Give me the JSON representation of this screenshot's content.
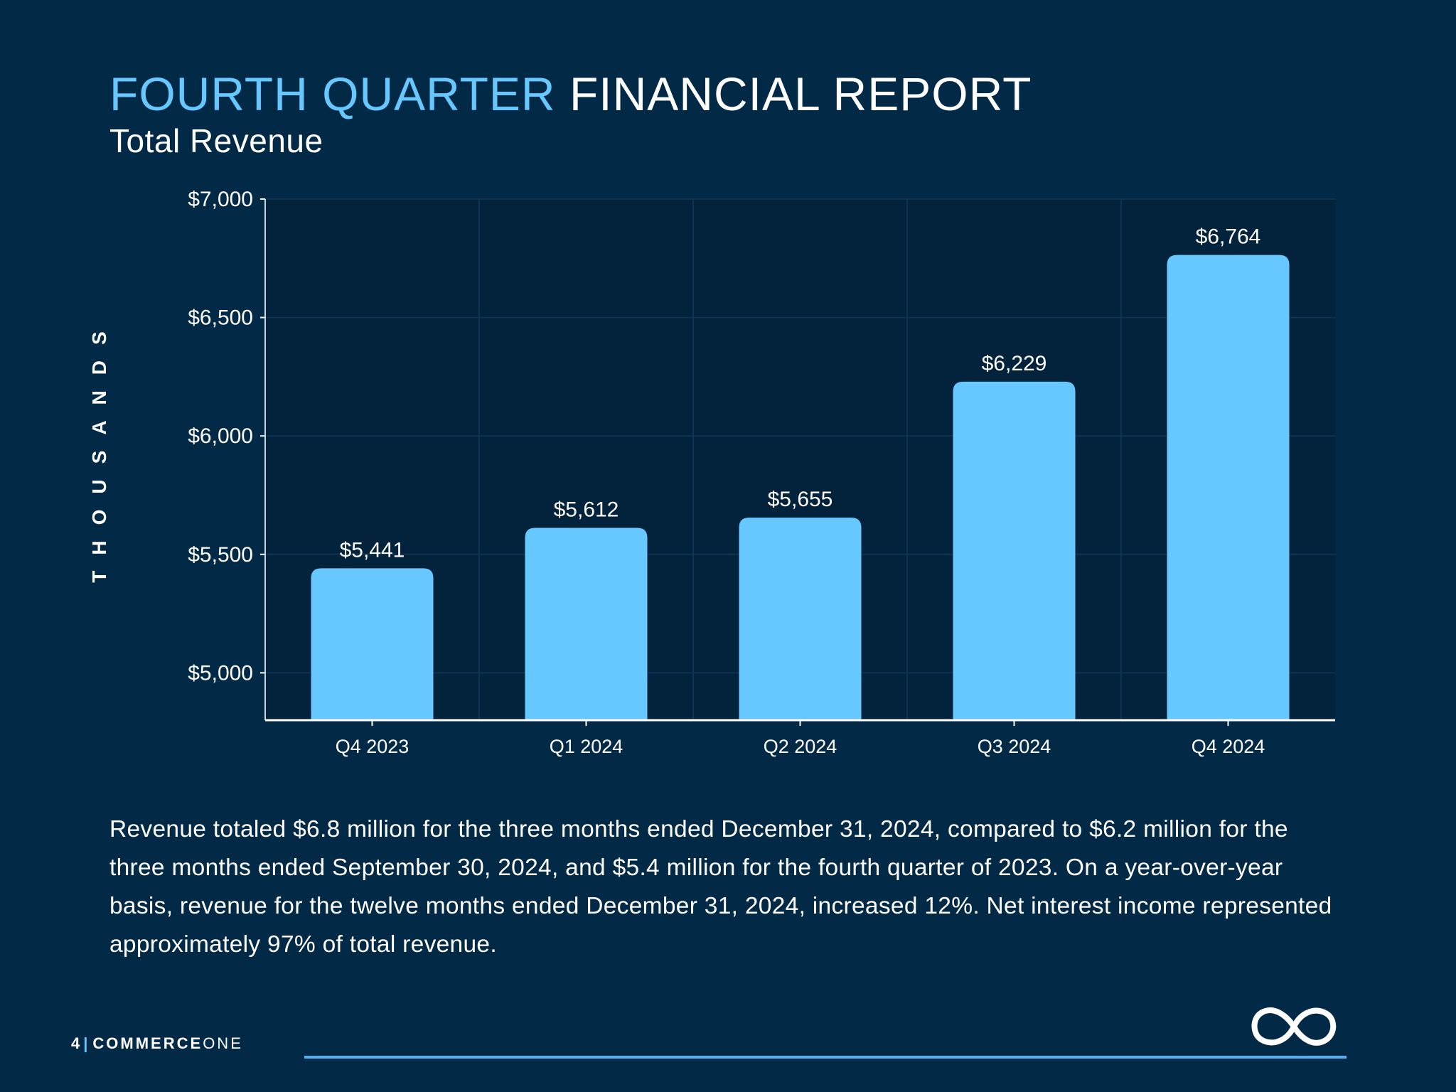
{
  "header": {
    "title_accent": "FOURTH QUARTER",
    "title_rest": "FINANCIAL REPORT",
    "subtitle": "Total Revenue"
  },
  "chart_data": {
    "type": "bar",
    "title": "Total Revenue",
    "ylabel": "THOUSANDS",
    "xlabel": "",
    "categories": [
      "Q4 2023",
      "Q1 2024",
      "Q2 2024",
      "Q3 2024",
      "Q4 2024"
    ],
    "values": [
      5441,
      5612,
      5655,
      6229,
      6764
    ],
    "data_labels": [
      "$5,441",
      "$5,612",
      "$5,655",
      "$6,229",
      "$6,764"
    ],
    "ylim": [
      4800,
      7000
    ],
    "yticks": [
      5000,
      5500,
      6000,
      6500,
      7000
    ],
    "ytick_labels": [
      "$5,000",
      "$5,500",
      "$6,000",
      "$6,500",
      "$7,000"
    ],
    "grid": true,
    "legend": "none",
    "bar_color": "#66c8ff"
  },
  "body": {
    "paragraph": "Revenue totaled $6.8 million for the three months ended December 31, 2024, compared to $6.2 million for the three months ended September 30, 2024, and $5.4 million for the fourth quarter of 2023. On a year-over-year basis, revenue for the twelve months ended December 31, 2024, increased 12%. Net interest income represented approximately 97% of total revenue."
  },
  "footer": {
    "page_number": "4",
    "separator": "|",
    "brand_bold": "COMMERCE",
    "brand_light": "ONE",
    "logo_icon": "infinity-logo-icon"
  },
  "colors": {
    "background": "#022a47",
    "accent": "#66c8ff",
    "text": "#ffffff"
  }
}
